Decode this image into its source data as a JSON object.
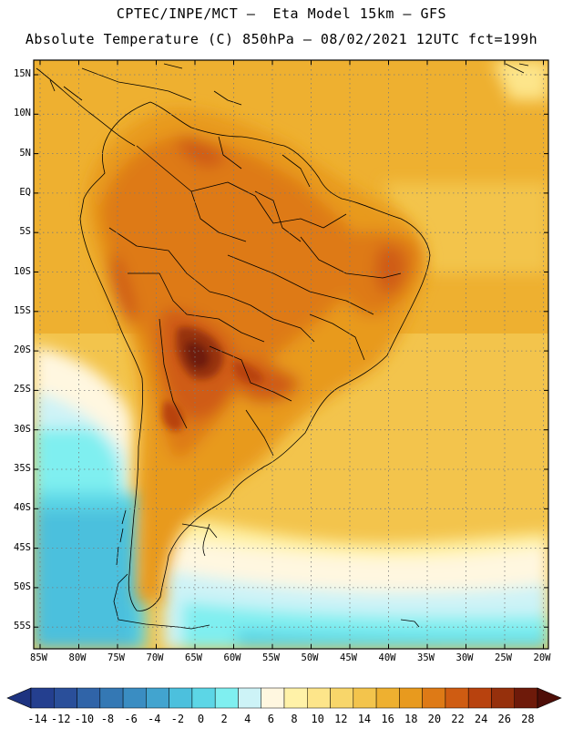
{
  "header": {
    "line1": "CPTEC/INPE/MCT –  Eta Model 15km – GFS",
    "line2": "Absolute Temperature (C) 850hPa – 08/02/2021 12UTC fct=199h"
  },
  "axes": {
    "lat_labels": [
      "15N",
      "10N",
      "5N",
      "EQ",
      "5S",
      "10S",
      "15S",
      "20S",
      "25S",
      "30S",
      "35S",
      "40S",
      "45S",
      "50S",
      "55S"
    ],
    "lon_labels": [
      "85W",
      "80W",
      "75W",
      "70W",
      "65W",
      "60W",
      "55W",
      "50W",
      "45W",
      "40W",
      "35W",
      "30W",
      "25W",
      "20W"
    ]
  },
  "colorbar": {
    "ticks": [
      "-14",
      "-12",
      "-10",
      "-8",
      "-6",
      "-4",
      "-2",
      "0",
      "2",
      "4",
      "6",
      "8",
      "10",
      "12",
      "14",
      "16",
      "18",
      "20",
      "22",
      "24",
      "26",
      "28"
    ],
    "colors": [
      "#243f8f",
      "#2a4f9a",
      "#3064a8",
      "#3478b4",
      "#3a8dc2",
      "#42a4cf",
      "#4cc0dd",
      "#5cd6e6",
      "#7feff0",
      "#cdf3f7",
      "#fff7e0",
      "#fff2a8",
      "#fde58a",
      "#f8d66a",
      "#f3c44c",
      "#eeb030",
      "#e89a1e",
      "#de7a16",
      "#cf5c12",
      "#b8420e",
      "#96300c",
      "#6e1a0a"
    ],
    "under_color": "#1e3380",
    "over_color": "#4e0e08"
  }
}
